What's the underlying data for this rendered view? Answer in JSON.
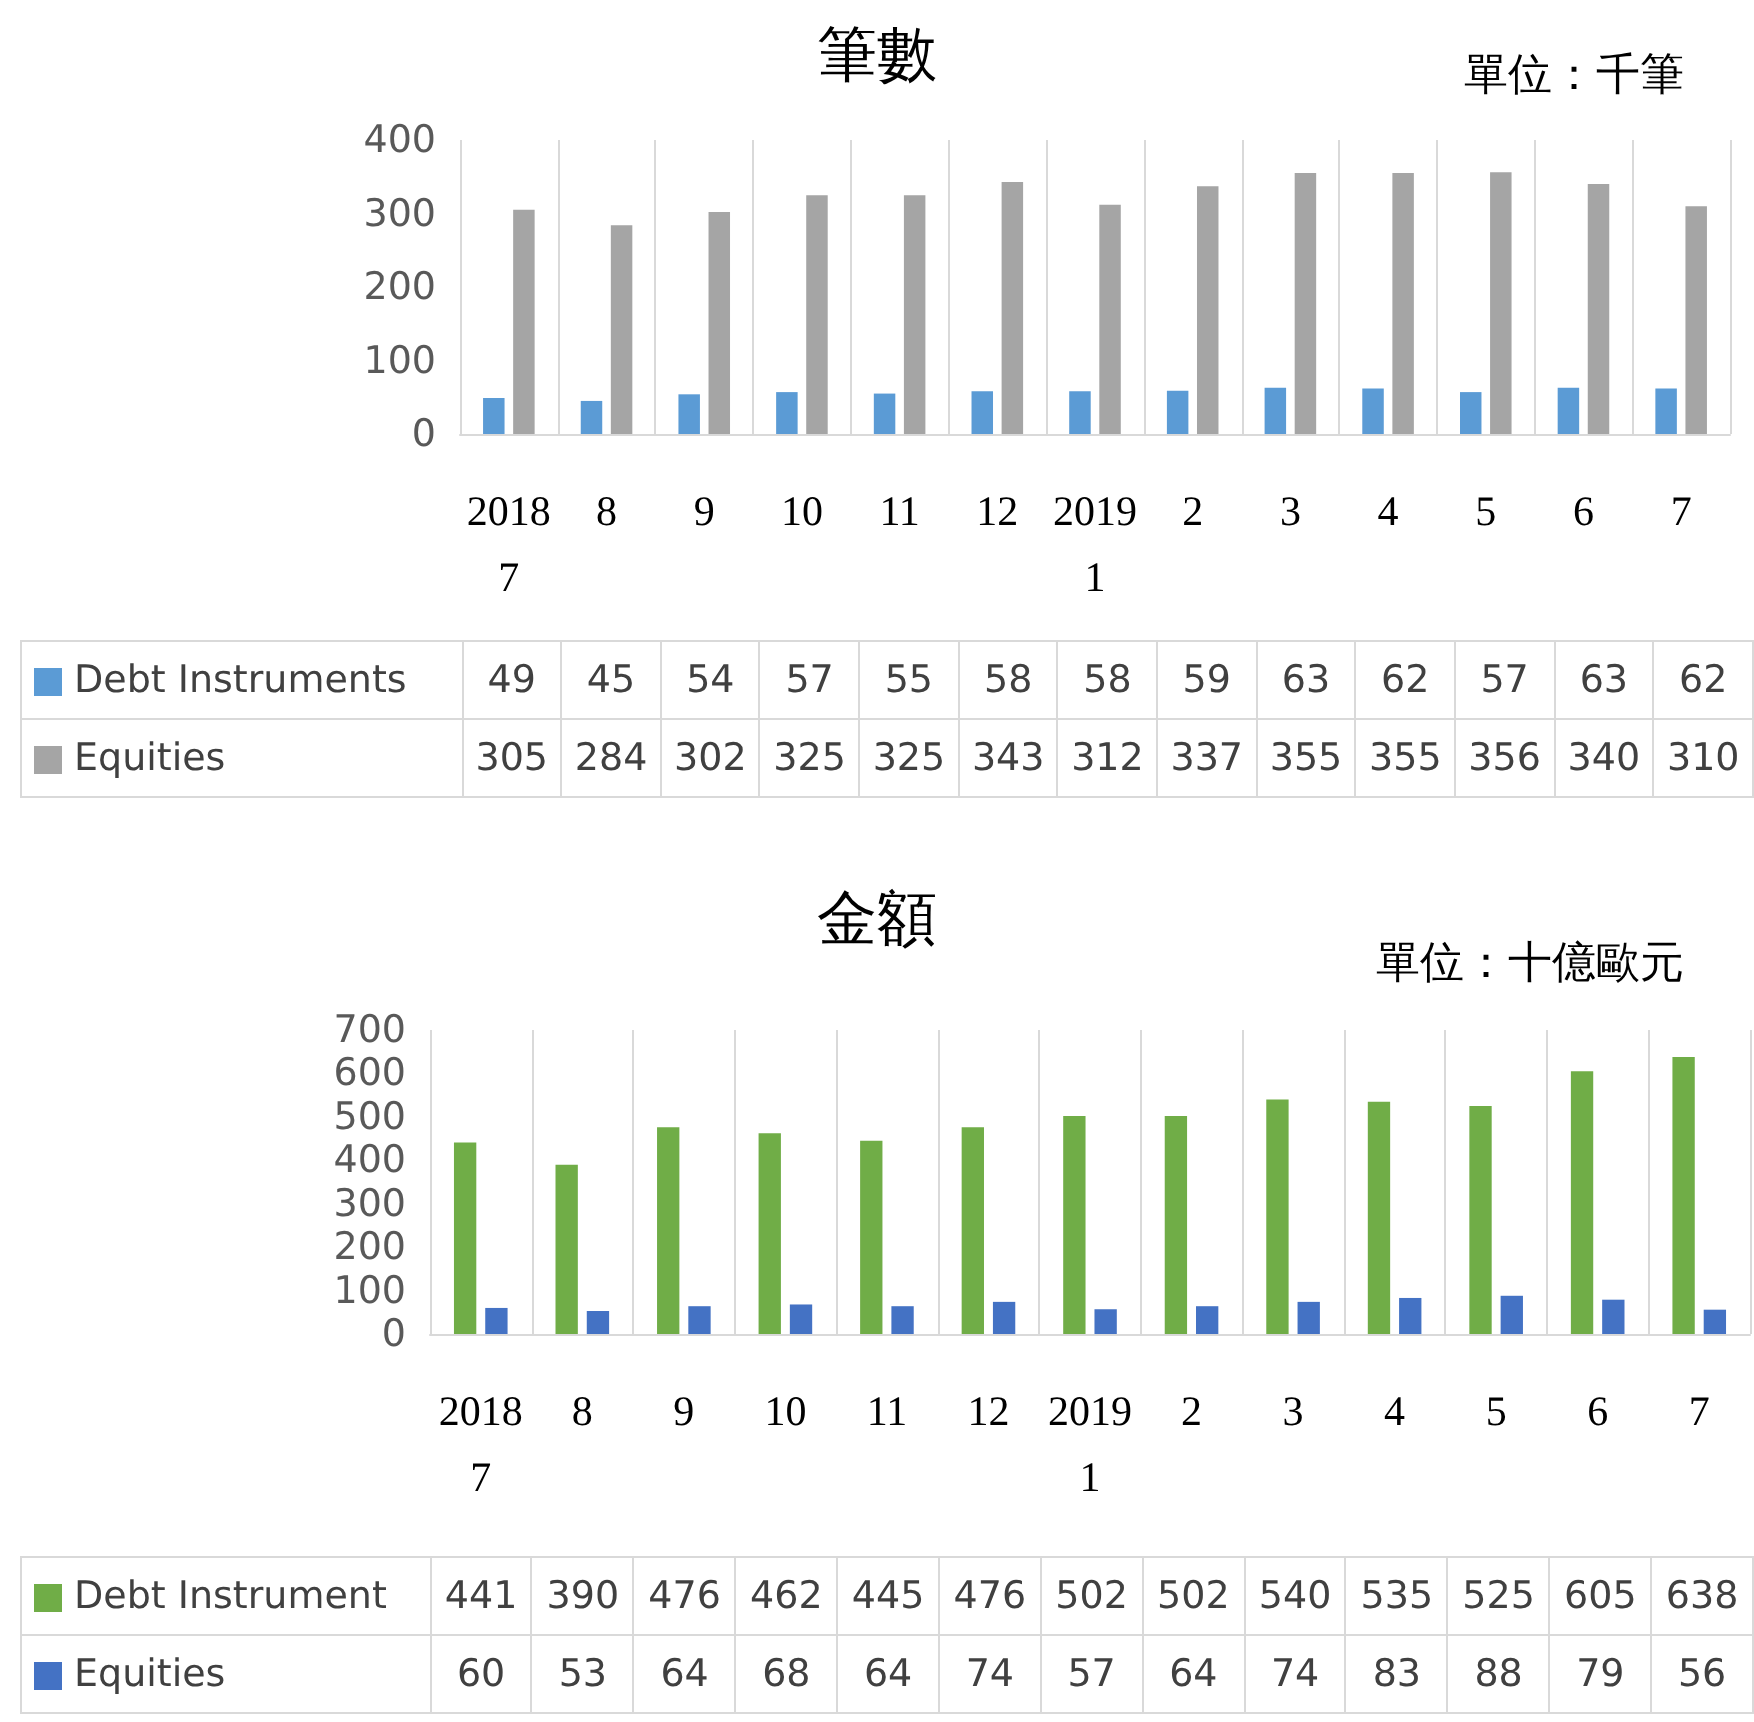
{
  "chart_data": [
    {
      "type": "bar",
      "title": "筆數",
      "annotations": [
        "單位：千筆"
      ],
      "categories": [
        "2018\n7",
        "8",
        "9",
        "10",
        "11",
        "12",
        "2019\n1",
        "2",
        "3",
        "4",
        "5",
        "6",
        "7"
      ],
      "series": [
        {
          "name": "Debt Instruments",
          "color": "#5b9bd5",
          "values": [
            49,
            45,
            54,
            57,
            55,
            58,
            58,
            59,
            63,
            62,
            57,
            63,
            62
          ]
        },
        {
          "name": "Equities",
          "color": "#a5a5a5",
          "values": [
            305,
            284,
            302,
            325,
            325,
            343,
            312,
            337,
            355,
            355,
            356,
            340,
            310
          ]
        }
      ],
      "ylim": [
        0,
        400
      ],
      "yticks": [
        0,
        100,
        200,
        300,
        400
      ],
      "grid": "x",
      "legend": "bottom",
      "data_labels": true
    },
    {
      "type": "bar",
      "title": "金額",
      "annotations": [
        "單位：十億歐元"
      ],
      "categories": [
        "2018\n7",
        "8",
        "9",
        "10",
        "11",
        "12",
        "2019\n1",
        "2",
        "3",
        "4",
        "5",
        "6",
        "7"
      ],
      "series": [
        {
          "name": "Debt Instrument",
          "color": "#70ad47",
          "values": [
            441,
            390,
            476,
            462,
            445,
            476,
            502,
            502,
            540,
            535,
            525,
            605,
            638
          ]
        },
        {
          "name": "Equities",
          "color": "#4472c4",
          "values": [
            60,
            53,
            64,
            68,
            64,
            74,
            57,
            64,
            74,
            83,
            88,
            79,
            56
          ]
        }
      ],
      "ylim": [
        0,
        700
      ],
      "yticks": [
        0,
        100,
        200,
        300,
        400,
        500,
        600,
        700
      ],
      "grid": "x",
      "legend": "bottom",
      "data_labels": true
    }
  ]
}
